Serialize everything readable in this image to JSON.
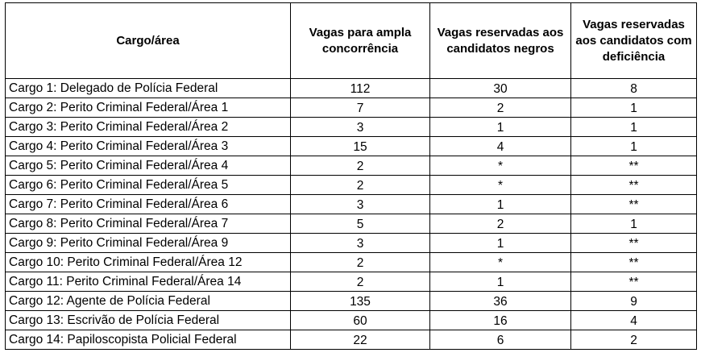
{
  "headers": {
    "cargo": "Cargo/área",
    "ampla": "Vagas para ampla concorrência",
    "negros": "Vagas reservadas aos candidatos negros",
    "deficiencia": "Vagas reservadas aos candidatos com deficiência"
  },
  "rows": [
    {
      "cargo": "Cargo 1: Delegado de Polícia Federal",
      "ampla": "112",
      "negros": "30",
      "deficiencia": "8"
    },
    {
      "cargo": "Cargo 2: Perito Criminal Federal/Área 1",
      "ampla": "7",
      "negros": "2",
      "deficiencia": "1"
    },
    {
      "cargo": "Cargo 3: Perito Criminal Federal/Área 2",
      "ampla": "3",
      "negros": "1",
      "deficiencia": "1"
    },
    {
      "cargo": "Cargo 4: Perito Criminal Federal/Área 3",
      "ampla": "15",
      "negros": "4",
      "deficiencia": "1"
    },
    {
      "cargo": "Cargo 5: Perito Criminal Federal/Área 4",
      "ampla": "2",
      "negros": "*",
      "deficiencia": "**"
    },
    {
      "cargo": "Cargo 6: Perito Criminal Federal/Área 5",
      "ampla": "2",
      "negros": "*",
      "deficiencia": "**"
    },
    {
      "cargo": "Cargo 7: Perito Criminal Federal/Área 6",
      "ampla": "3",
      "negros": "1",
      "deficiencia": "**"
    },
    {
      "cargo": "Cargo 8: Perito Criminal Federal/Área 7",
      "ampla": "5",
      "negros": "2",
      "deficiencia": "1"
    },
    {
      "cargo": "Cargo 9: Perito Criminal Federal/Área 9",
      "ampla": "3",
      "negros": "1",
      "deficiencia": "**"
    },
    {
      "cargo": "Cargo 10: Perito Criminal Federal/Área 12",
      "ampla": "2",
      "negros": "*",
      "deficiencia": "**"
    },
    {
      "cargo": "Cargo 11: Perito Criminal Federal/Área 14",
      "ampla": "2",
      "negros": "1",
      "deficiencia": "**"
    },
    {
      "cargo": "Cargo 12: Agente de Polícia Federal",
      "ampla": "135",
      "negros": "36",
      "deficiencia": "9"
    },
    {
      "cargo": "Cargo 13: Escrivão de Polícia Federal",
      "ampla": "60",
      "negros": "16",
      "deficiencia": "4"
    },
    {
      "cargo": "Cargo 14: Papiloscopista Policial Federal",
      "ampla": "22",
      "negros": "6",
      "deficiencia": "2"
    }
  ]
}
